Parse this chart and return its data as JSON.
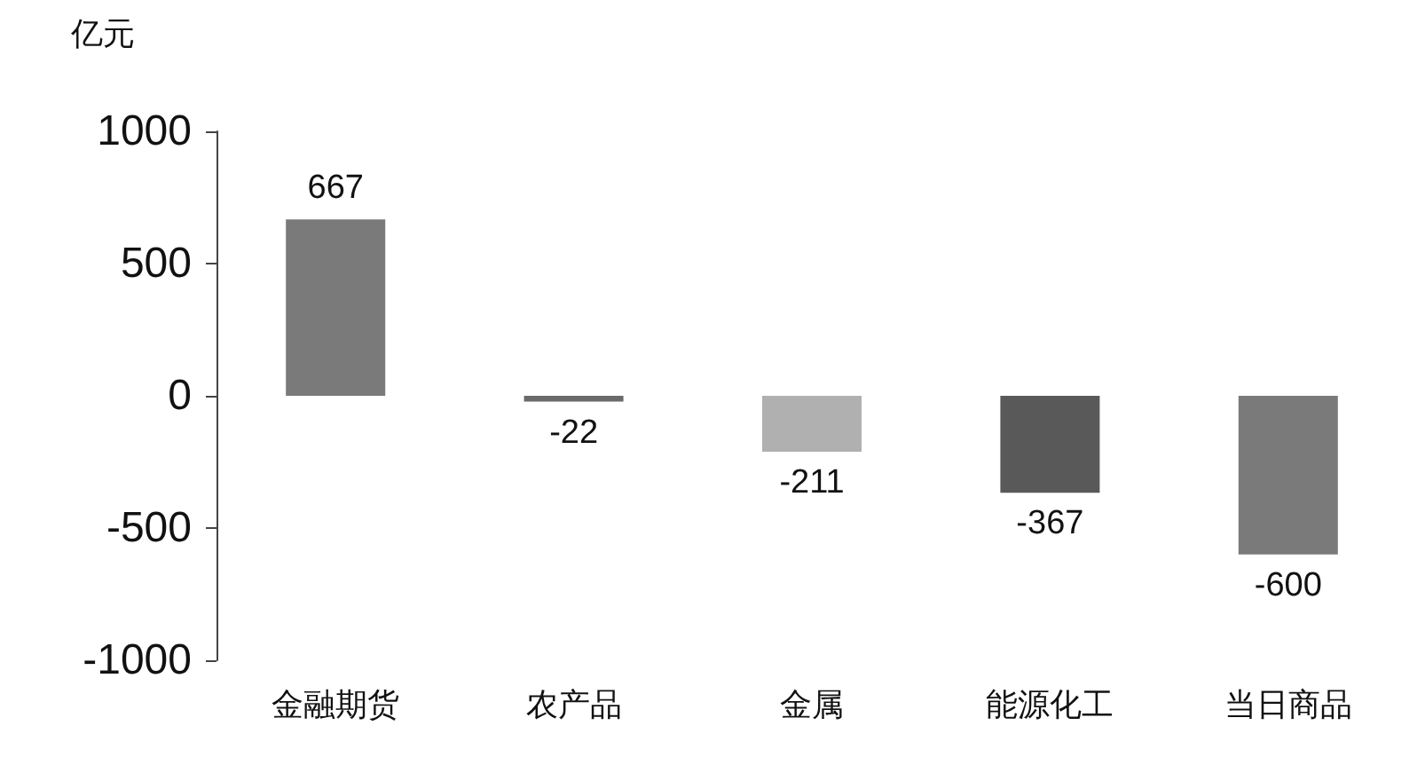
{
  "chart_data": {
    "type": "bar",
    "ylabel": "亿元",
    "categories": [
      "金融期货",
      "农产品",
      "金属",
      "能源化工",
      "当日商品"
    ],
    "values": [
      667,
      -22,
      -211,
      -367,
      -600
    ],
    "colors": [
      "#7a7a7a",
      "#6a6a6a",
      "#b0b0b0",
      "#595959",
      "#7a7a7a"
    ],
    "ylim": [
      -1000,
      1000
    ],
    "yticks": [
      -1000,
      -500,
      0,
      500,
      1000
    ],
    "data_labels": true,
    "grid": false
  }
}
